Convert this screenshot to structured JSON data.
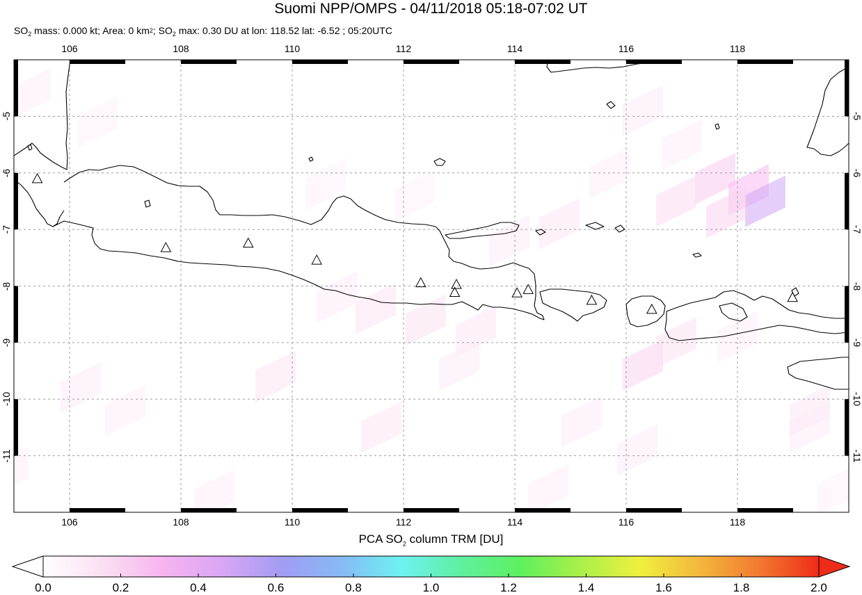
{
  "title": "Suomi NPP/OMPS - 04/11/2018 05:18-07:02 UT",
  "subtitle": {
    "so2_prefix": "SO",
    "so2_sub": "2",
    "mass_text": " mass: 0.000 kt; Area: 0 km",
    "area_sup": "2",
    "sep": "; SO",
    "max_sub": "2",
    "max_text": " max: 0.30 DU at lon: 118.52 lat: -6.52 ; 05:20UTC"
  },
  "map": {
    "lon_range": [
      105,
      120
    ],
    "lat_range": [
      -12,
      -4
    ],
    "lon_ticks": [
      "106",
      "108",
      "110",
      "112",
      "114",
      "116",
      "118"
    ],
    "lat_ticks": [
      "-5",
      "-6",
      "-7",
      "-8",
      "-9",
      "-10",
      "-11"
    ],
    "grid": "dashed",
    "coastline_color": "#000000",
    "volcano_marker": "triangle-icon",
    "volcanoes": [
      {
        "lon": 105.42,
        "lat": -6.1
      },
      {
        "lon": 107.73,
        "lat": -7.32
      },
      {
        "lon": 109.21,
        "lat": -7.24
      },
      {
        "lon": 110.44,
        "lat": -7.54
      },
      {
        "lon": 112.31,
        "lat": -7.94
      },
      {
        "lon": 112.95,
        "lat": -7.97
      },
      {
        "lon": 112.92,
        "lat": -8.11
      },
      {
        "lon": 114.04,
        "lat": -8.12
      },
      {
        "lon": 114.24,
        "lat": -8.06
      },
      {
        "lon": 115.38,
        "lat": -8.25
      },
      {
        "lon": 116.46,
        "lat": -8.41
      },
      {
        "lon": 118.99,
        "lat": -8.2
      }
    ],
    "so2_pixels": [
      {
        "lon": 105.3,
        "lat": -4.6,
        "du": 0.05
      },
      {
        "lon": 106.5,
        "lat": -5.1,
        "du": 0.04
      },
      {
        "lon": 116.3,
        "lat": -4.9,
        "du": 0.06
      },
      {
        "lon": 117.0,
        "lat": -5.5,
        "du": 0.05
      },
      {
        "lon": 117.6,
        "lat": -6.1,
        "du": 0.14
      },
      {
        "lon": 118.2,
        "lat": -6.3,
        "du": 0.18
      },
      {
        "lon": 118.5,
        "lat": -6.5,
        "du": 0.3
      },
      {
        "lon": 117.8,
        "lat": -6.7,
        "du": 0.12
      },
      {
        "lon": 116.9,
        "lat": -6.5,
        "du": 0.1
      },
      {
        "lon": 114.8,
        "lat": -6.9,
        "du": 0.07
      },
      {
        "lon": 113.9,
        "lat": -7.2,
        "du": 0.06
      },
      {
        "lon": 115.7,
        "lat": -6.0,
        "du": 0.05
      },
      {
        "lon": 111.5,
        "lat": -8.4,
        "du": 0.08
      },
      {
        "lon": 112.4,
        "lat": -8.6,
        "du": 0.09
      },
      {
        "lon": 113.3,
        "lat": -8.8,
        "du": 0.07
      },
      {
        "lon": 110.8,
        "lat": -8.2,
        "du": 0.06
      },
      {
        "lon": 109.7,
        "lat": -9.6,
        "du": 0.08
      },
      {
        "lon": 106.2,
        "lat": -9.8,
        "du": 0.06
      },
      {
        "lon": 107.0,
        "lat": -10.2,
        "du": 0.05
      },
      {
        "lon": 111.6,
        "lat": -10.5,
        "du": 0.07
      },
      {
        "lon": 113.0,
        "lat": -9.4,
        "du": 0.06
      },
      {
        "lon": 116.3,
        "lat": -9.4,
        "du": 0.12
      },
      {
        "lon": 116.9,
        "lat": -9.0,
        "du": 0.09
      },
      {
        "lon": 115.2,
        "lat": -10.4,
        "du": 0.06
      },
      {
        "lon": 116.2,
        "lat": -10.9,
        "du": 0.06
      },
      {
        "lon": 114.6,
        "lat": -11.6,
        "du": 0.05
      },
      {
        "lon": 119.3,
        "lat": -10.2,
        "du": 0.07
      },
      {
        "lon": 119.3,
        "lat": -10.5,
        "du": 0.06
      },
      {
        "lon": 108.6,
        "lat": -11.7,
        "du": 0.05
      },
      {
        "lon": 104.9,
        "lat": -11.3,
        "du": 0.05
      },
      {
        "lon": 119.8,
        "lat": -11.6,
        "du": 0.04
      },
      {
        "lon": 118.0,
        "lat": -8.9,
        "du": 0.05
      },
      {
        "lon": 110.6,
        "lat": -6.2,
        "du": 0.04
      },
      {
        "lon": 112.2,
        "lat": -6.4,
        "du": 0.04
      }
    ]
  },
  "colorbar": {
    "label_prefix": "PCA SO",
    "label_sub": "2",
    "label_suffix": " column TRM [DU]",
    "range": [
      0.0,
      2.0
    ],
    "ticks": [
      "0.0",
      "0.2",
      "0.4",
      "0.6",
      "0.8",
      "1.0",
      "1.2",
      "1.4",
      "1.6",
      "1.8",
      "2.0"
    ],
    "colors": [
      "#ffffff",
      "#fbdff2",
      "#f7b4ef",
      "#d9a6f5",
      "#a29cf3",
      "#86baf5",
      "#6ef2f2",
      "#5ff0a0",
      "#5ef05e",
      "#a9f04a",
      "#eff03f",
      "#f3b73d",
      "#f27a30",
      "#ee2c17"
    ],
    "under_color": "#ffffff",
    "over_color": "#ee2c17"
  }
}
